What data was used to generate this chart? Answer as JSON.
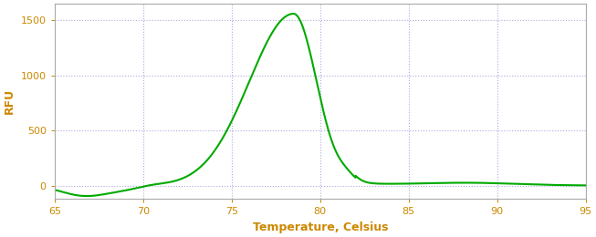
{
  "xlabel": "Temperature, Celsius",
  "ylabel": "RFU",
  "xlim": [
    65,
    95
  ],
  "ylim": [
    -120,
    1650
  ],
  "xticks": [
    65,
    70,
    75,
    80,
    85,
    90,
    95
  ],
  "yticks": [
    0,
    500,
    1000,
    1500
  ],
  "line_color": "#00aa00",
  "background_color": "#ffffff",
  "grid_color": "#aaaadd",
  "tick_label_color": "#cc8800",
  "axis_label_color": "#cc8800",
  "peak_temp": 78.5,
  "peak_value": 1560,
  "line_width": 1.5,
  "xlabel_fontsize": 9,
  "ylabel_fontsize": 9,
  "tick_fontsize": 8
}
